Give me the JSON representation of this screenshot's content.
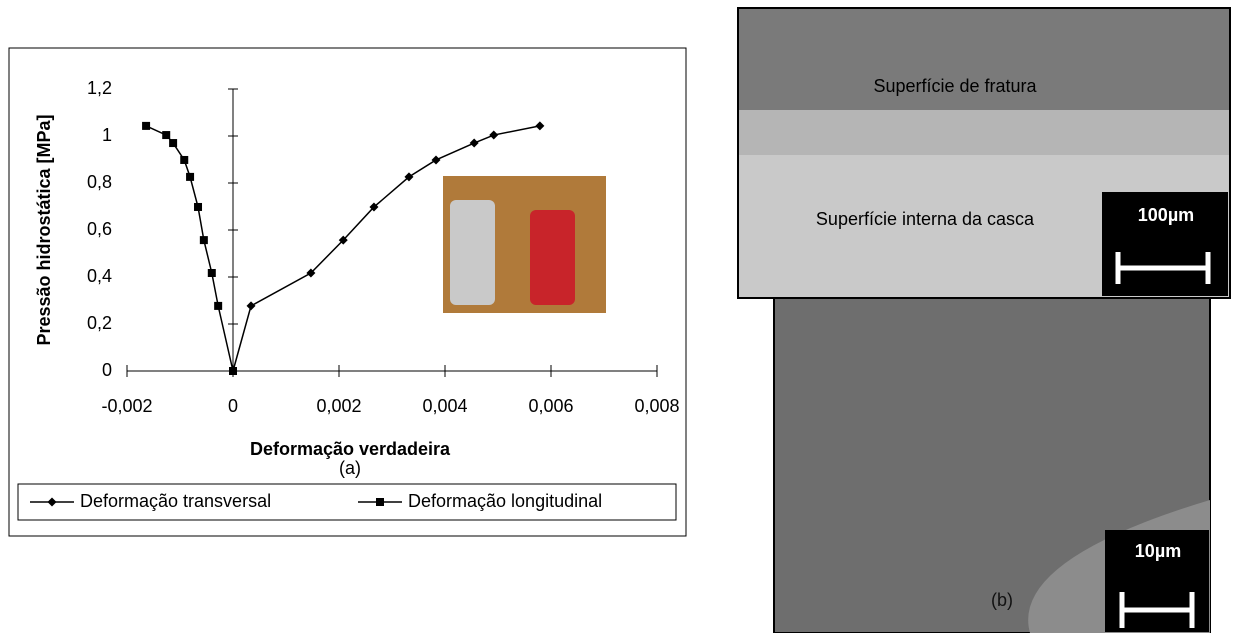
{
  "chart_data": {
    "type": "line",
    "y_label": "Pressão hidrostática  [MPa]",
    "x_label": "Deformação verdadeira",
    "caption": "(a)",
    "xlim": [
      -0.002,
      0.008
    ],
    "ylim": [
      0,
      1.2
    ],
    "xticks": [
      {
        "value": -0.002,
        "label": "-0,002"
      },
      0,
      {
        "value": 0.002,
        "label": "0,002"
      },
      {
        "value": 0.004,
        "label": "0,004"
      },
      {
        "value": 0.006,
        "label": "0,006"
      },
      {
        "value": 0.008,
        "label": "0,008"
      }
    ],
    "yticks": [
      0,
      {
        "value": 0.2,
        "label": "0,2"
      },
      {
        "value": 0.4,
        "label": "0,4"
      },
      {
        "value": 0.6,
        "label": "0,6"
      },
      {
        "value": 0.8,
        "label": "0,8"
      },
      1,
      {
        "value": 1.2,
        "label": "1,2"
      }
    ],
    "legend": "bottom",
    "series": [
      {
        "name": "Deformação transversal",
        "color": "#000000",
        "marker": "diamond",
        "x": [
          0,
          0.00034,
          0.00147,
          0.00208,
          0.00266,
          0.00332,
          0.00383,
          0.00455,
          0.00492,
          0.00579
        ],
        "values": [
          0,
          0.277,
          0.417,
          0.557,
          0.698,
          0.826,
          0.898,
          0.97,
          1.004,
          1.043
        ]
      },
      {
        "name": "Deformação longitudinal",
        "color": "#000000",
        "marker": "square",
        "x": [
          -0.00164,
          -0.00126,
          -0.00113,
          -0.00092,
          -0.00081,
          -0.00066,
          -0.00055,
          -0.0004,
          -0.00028,
          0
        ],
        "values": [
          1.043,
          1.004,
          0.97,
          0.898,
          0.826,
          0.698,
          0.557,
          0.417,
          0.277,
          0
        ]
      }
    ]
  },
  "images": {
    "top_label_1": "Superfície de fratura",
    "top_label_2": "Superfície interna da casca",
    "top_scale": "100µm",
    "bottom_scale": "10µm",
    "bottom_caption": "(b)"
  }
}
